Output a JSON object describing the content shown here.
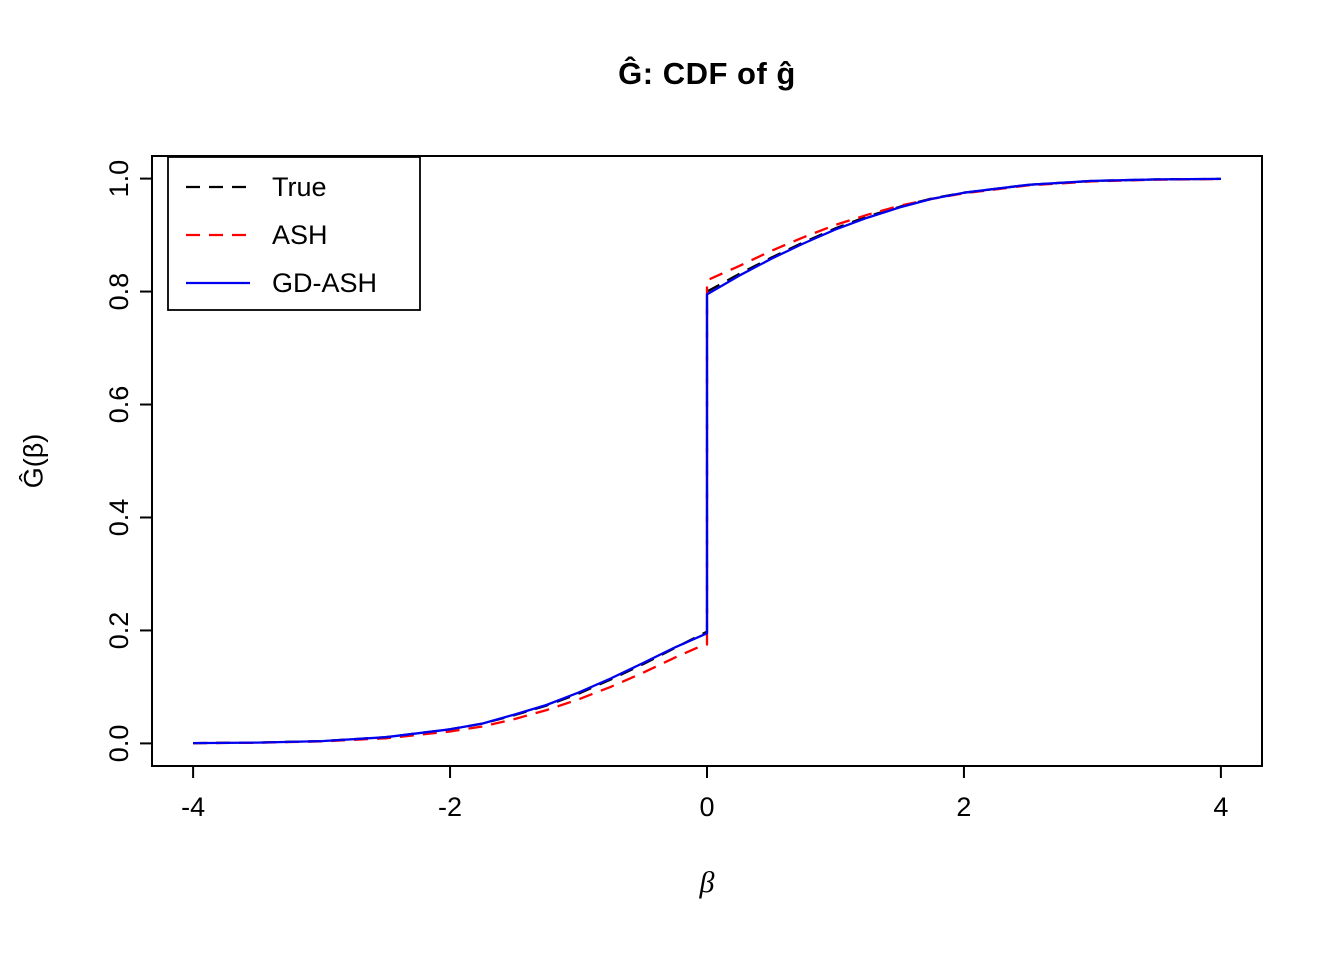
{
  "chart_data": {
    "type": "line",
    "title": "Ĝ: CDF of ĝ",
    "xlabel": "β",
    "ylabel": "Ĝ(β)",
    "xlim": [
      -4,
      4
    ],
    "ylim": [
      0,
      1
    ],
    "grid": false,
    "x_ticks": {
      "values": [
        -4,
        -2,
        0,
        2,
        4
      ],
      "labels": [
        "-4",
        "-2",
        "0",
        "2",
        "4"
      ]
    },
    "y_ticks": {
      "values": [
        0,
        0.2,
        0.4,
        0.6,
        0.8,
        1
      ],
      "labels": [
        "0.0",
        "0.2",
        "0.4",
        "0.6",
        "0.8",
        "1.0"
      ]
    },
    "legend": {
      "position": "topleft"
    },
    "series": [
      {
        "name": "True",
        "color": "#000000",
        "style": "dashed",
        "points": [
          [
            -4,
            0.0005
          ],
          [
            -3.5,
            0.0015
          ],
          [
            -3,
            0.004
          ],
          [
            -2.5,
            0.011
          ],
          [
            -2,
            0.025
          ],
          [
            -1.75,
            0.035
          ],
          [
            -1.5,
            0.05
          ],
          [
            -1.25,
            0.067
          ],
          [
            -1,
            0.088
          ],
          [
            -0.75,
            0.113
          ],
          [
            -0.5,
            0.14
          ],
          [
            -0.25,
            0.169
          ],
          [
            0,
            0.198
          ],
          [
            0,
            0.8
          ],
          [
            0.25,
            0.831
          ],
          [
            0.5,
            0.86
          ],
          [
            0.75,
            0.887
          ],
          [
            1,
            0.912
          ],
          [
            1.25,
            0.933
          ],
          [
            1.5,
            0.95
          ],
          [
            1.75,
            0.965
          ],
          [
            2,
            0.975
          ],
          [
            2.5,
            0.989
          ],
          [
            3,
            0.996
          ],
          [
            3.5,
            0.9985
          ],
          [
            4,
            0.9995
          ]
        ]
      },
      {
        "name": "ASH",
        "color": "#FF0000",
        "style": "dashed",
        "points": [
          [
            -4,
            0.0005
          ],
          [
            -3.5,
            0.0013
          ],
          [
            -3,
            0.0035
          ],
          [
            -2.5,
            0.009
          ],
          [
            -2,
            0.021
          ],
          [
            -1.75,
            0.03
          ],
          [
            -1.5,
            0.043
          ],
          [
            -1.25,
            0.059
          ],
          [
            -1,
            0.078
          ],
          [
            -0.75,
            0.1
          ],
          [
            -0.5,
            0.125
          ],
          [
            -0.25,
            0.152
          ],
          [
            -0.05,
            0.172
          ],
          [
            0,
            0.175
          ],
          [
            0,
            0.82
          ],
          [
            0.25,
            0.845
          ],
          [
            0.5,
            0.872
          ],
          [
            0.75,
            0.896
          ],
          [
            1,
            0.918
          ],
          [
            1.25,
            0.936
          ],
          [
            1.5,
            0.952
          ],
          [
            1.75,
            0.964
          ],
          [
            2,
            0.974
          ],
          [
            2.5,
            0.988
          ],
          [
            3,
            0.995
          ],
          [
            3.5,
            0.998
          ],
          [
            4,
            0.9993
          ]
        ]
      },
      {
        "name": "GD-ASH",
        "color": "#0000EE",
        "style": "solid",
        "points": [
          [
            -4,
            0.0005
          ],
          [
            -3.5,
            0.0015
          ],
          [
            -3,
            0.004
          ],
          [
            -2.5,
            0.011
          ],
          [
            -2,
            0.025
          ],
          [
            -1.75,
            0.035
          ],
          [
            -1.5,
            0.051
          ],
          [
            -1.25,
            0.068
          ],
          [
            -1,
            0.09
          ],
          [
            -0.75,
            0.115
          ],
          [
            -0.5,
            0.142
          ],
          [
            -0.25,
            0.17
          ],
          [
            0,
            0.195
          ],
          [
            0,
            0.795
          ],
          [
            0.25,
            0.828
          ],
          [
            0.5,
            0.858
          ],
          [
            0.75,
            0.885
          ],
          [
            1,
            0.91
          ],
          [
            1.25,
            0.931
          ],
          [
            1.5,
            0.949
          ],
          [
            1.75,
            0.964
          ],
          [
            2,
            0.975
          ],
          [
            2.5,
            0.989
          ],
          [
            3,
            0.996
          ],
          [
            3.5,
            0.9985
          ],
          [
            4,
            0.9995
          ]
        ]
      }
    ]
  }
}
